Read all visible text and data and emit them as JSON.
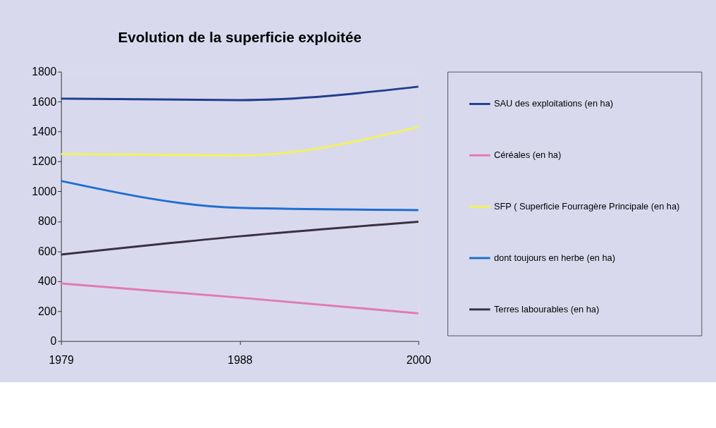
{
  "chart_data": {
    "type": "line",
    "title": "Evolution de la superficie exploitée",
    "categories": [
      "1979",
      "1988",
      "2000"
    ],
    "series": [
      {
        "name": "SAU des exploitations (en ha)",
        "color": "#1f3f8c",
        "values": [
          1620,
          1610,
          1700
        ]
      },
      {
        "name": "Céréales (en ha)",
        "color": "#e07ab4",
        "values": [
          385,
          290,
          185
        ]
      },
      {
        "name": "SFP ( Superficie Fourragère Principale (en ha)",
        "color": "#f2f25a",
        "values": [
          1250,
          1240,
          1430
        ]
      },
      {
        "name": "dont toujours en herbe (en ha)",
        "color": "#1e6fd0",
        "values": [
          1070,
          890,
          875
        ]
      },
      {
        "name": "Terres labourables (en ha)",
        "color": "#3a3040",
        "values": [
          578,
          700,
          797
        ]
      }
    ],
    "ylim": [
      0,
      1800
    ],
    "yticks": [
      0,
      200,
      400,
      600,
      800,
      1000,
      1200,
      1400,
      1600,
      1800
    ],
    "grid": false,
    "legend": "right",
    "marker": "none",
    "line_style": "solid"
  }
}
